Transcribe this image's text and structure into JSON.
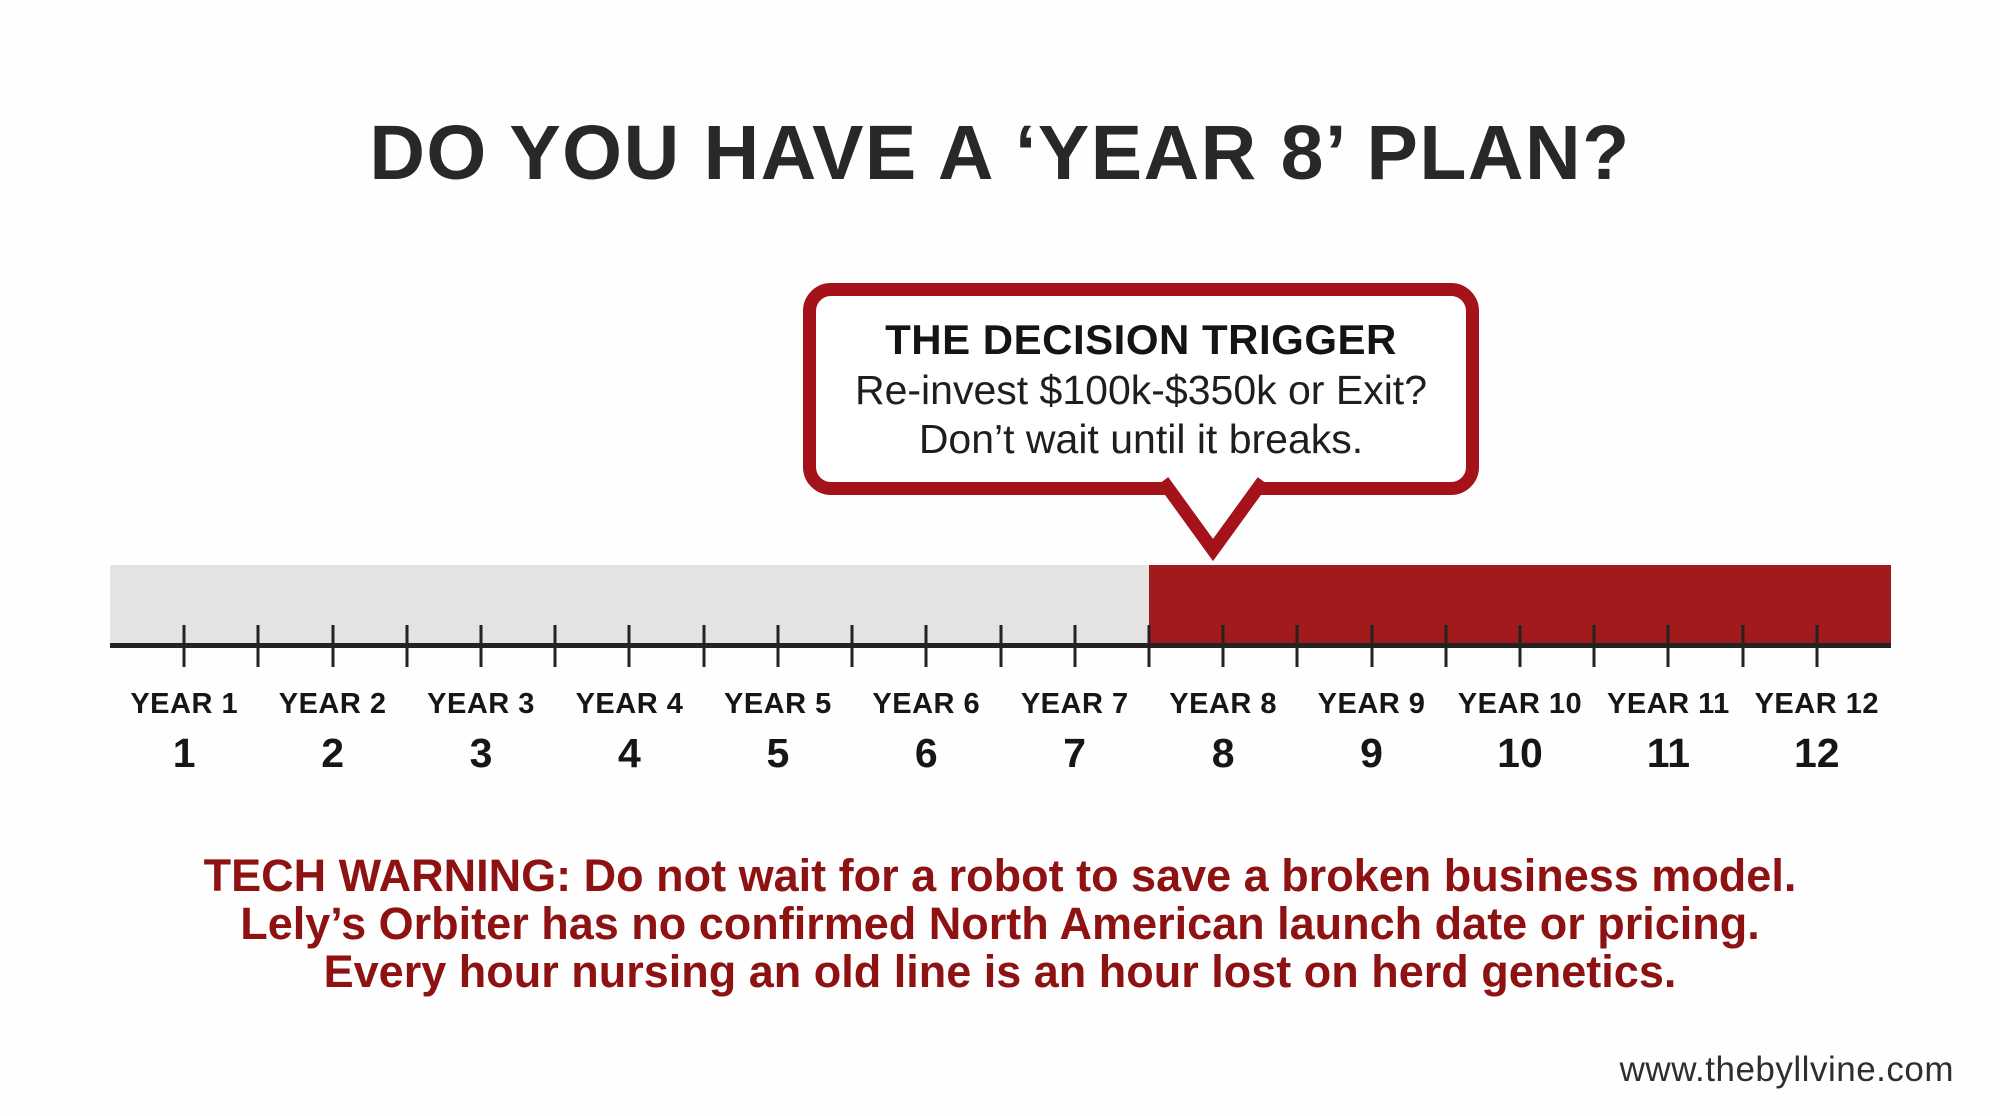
{
  "title": "DO YOU HAVE A ‘YEAR 8’ PLAN?",
  "callout": {
    "heading": "THE DECISION TRIGGER",
    "line1": "Re-invest $100k-$350k or Exit?",
    "line2": "Don’t wait until it breaks."
  },
  "timeline": {
    "axis_start_year": 0.5,
    "axis_end_year": 12.5,
    "tick_start": 1,
    "tick_end": 12,
    "tick_step": 0.5,
    "red_zone_start_year": 7.5,
    "years": [
      {
        "label": "YEAR 1",
        "number": "1"
      },
      {
        "label": "YEAR 2",
        "number": "2"
      },
      {
        "label": "YEAR 3",
        "number": "3"
      },
      {
        "label": "YEAR 4",
        "number": "4"
      },
      {
        "label": "YEAR 5",
        "number": "5"
      },
      {
        "label": "YEAR 6",
        "number": "6"
      },
      {
        "label": "YEAR 7",
        "number": "7"
      },
      {
        "label": "YEAR 8",
        "number": "8"
      },
      {
        "label": "YEAR 9",
        "number": "9"
      },
      {
        "label": "YEAR 10",
        "number": "10"
      },
      {
        "label": "YEAR 11",
        "number": "11"
      },
      {
        "label": "YEAR 12",
        "number": "12"
      }
    ]
  },
  "warning": {
    "lines": [
      "TECH WARNING: Do not wait for a robot to save a broken business model.",
      "Lely’s Orbiter has no confirmed North American launch date or pricing.",
      "Every hour nursing an old line is an hour lost on herd genetics."
    ]
  },
  "footer": {
    "website": "www.thebyllvine.com"
  },
  "colors": {
    "background": "#fefefe",
    "accent_border_red": "#a4121a",
    "bar_red": "#a31a1c",
    "bar_gray": "#e4e3e1",
    "warning_red": "#8e1212",
    "title_color": "#282828"
  }
}
